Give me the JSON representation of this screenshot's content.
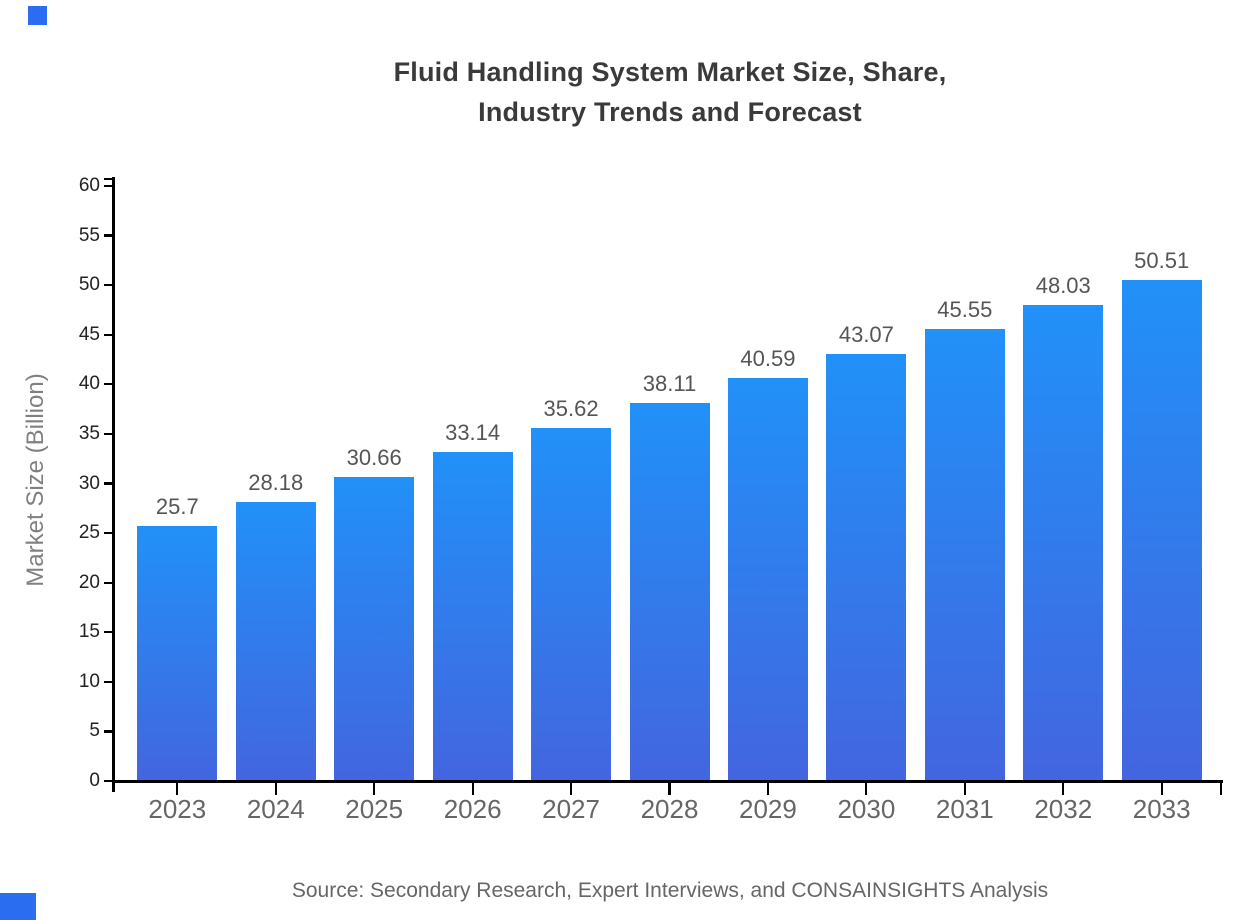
{
  "title": {
    "line1": "Fluid Handling System Market Size, Share,",
    "line2": "Industry Trends and Forecast"
  },
  "source_note": "Source: Secondary Research, Expert Interviews, and CONSAINSIGHTS Analysis",
  "colors": {
    "bar_gradient_top": "#2191f8",
    "bar_gradient_bottom": "#4365df",
    "axis": "#000000",
    "title_text": "#3a3a3a",
    "ytick_text": "#222222",
    "xtick_text": "#666666",
    "value_text": "#555555",
    "ylabel_text": "#808080",
    "source_text": "#666666",
    "corner_mark": "#2a6df1"
  },
  "chart_data": {
    "type": "bar",
    "title": "Fluid Handling System Market Size, Share, Industry Trends and Forecast",
    "categories": [
      "2023",
      "2024",
      "2025",
      "2026",
      "2027",
      "2028",
      "2029",
      "2030",
      "2031",
      "2032",
      "2033"
    ],
    "values": [
      25.7,
      28.18,
      30.66,
      33.14,
      35.62,
      38.11,
      40.59,
      43.07,
      45.55,
      48.03,
      50.51
    ],
    "value_labels": [
      "25.7",
      "28.18",
      "30.66",
      "33.14",
      "35.62",
      "38.11",
      "40.59",
      "43.07",
      "45.55",
      "48.03",
      "50.51"
    ],
    "xlabel": "",
    "ylabel": "Market Size (Billion)",
    "ylim": [
      0,
      60
    ],
    "ytick_step": 5,
    "yticks": [
      0,
      5,
      10,
      15,
      20,
      25,
      30,
      35,
      40,
      45,
      50,
      55,
      60
    ],
    "grid": false,
    "legend": null
  }
}
